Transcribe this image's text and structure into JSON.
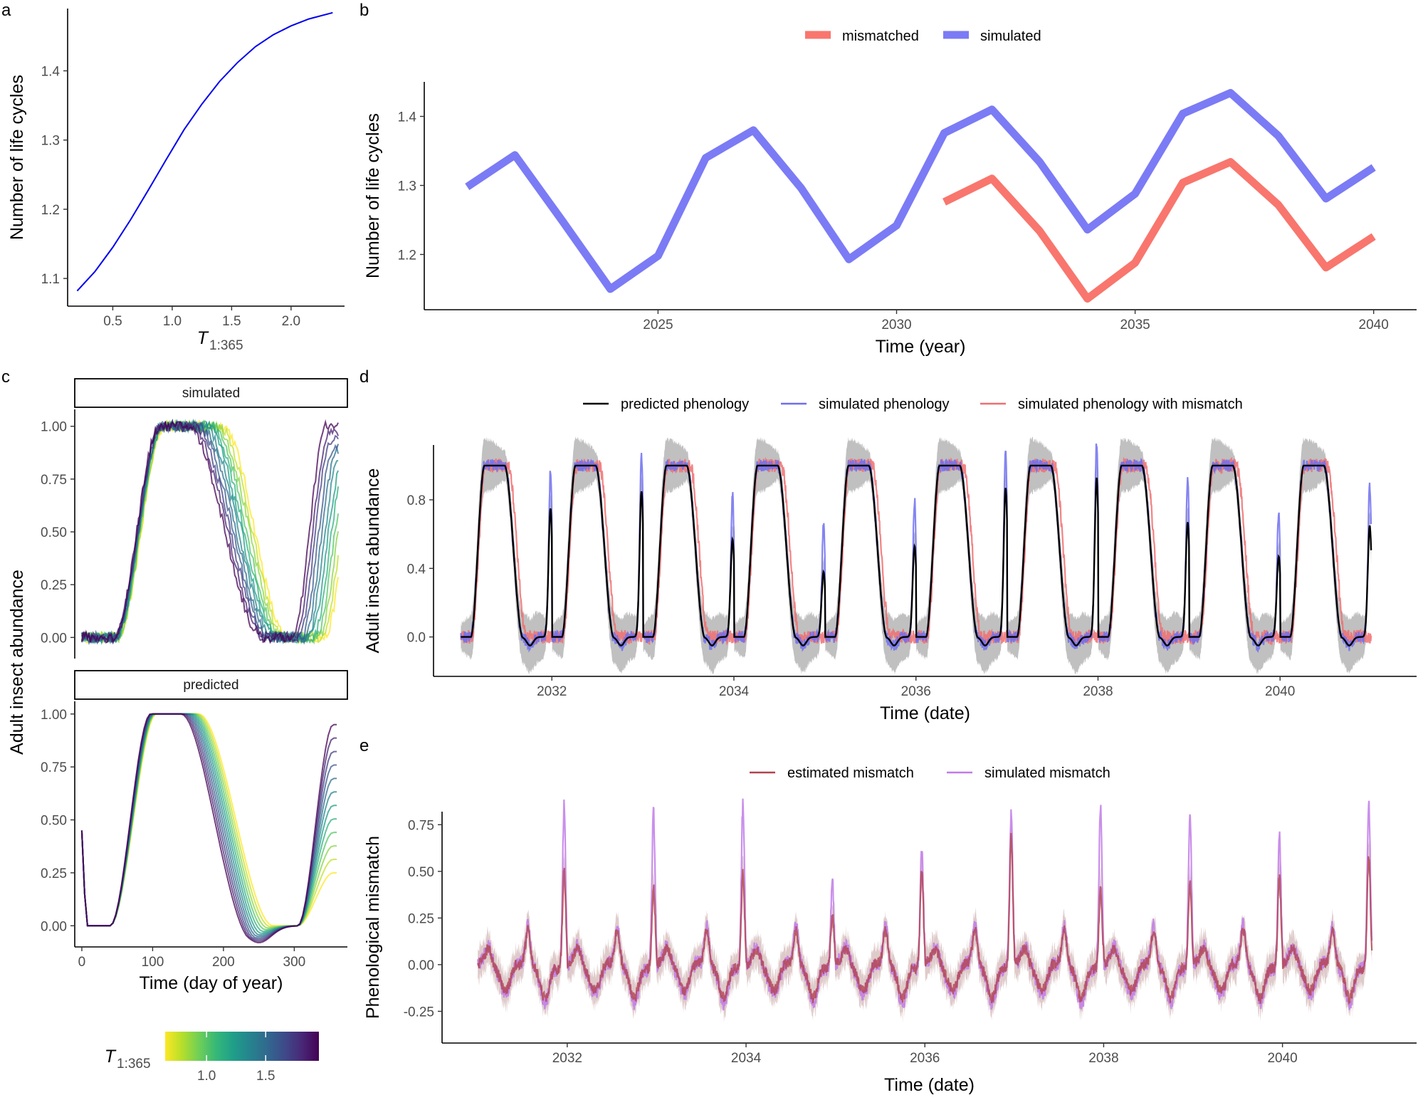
{
  "panel_labels": [
    "a",
    "b",
    "c",
    "d",
    "e"
  ],
  "colors": {
    "mismatched": "#F8766D",
    "simulated_b": "#7B7BF5",
    "predicted_phenology": "#000000",
    "simulated_phenology": "#6E6EF0",
    "simulated_phenology_with_mismatch": "#F06E70",
    "estimated_mismatch": "#B0424F",
    "simulated_mismatch": "#C17BE8",
    "panel_a_line": "#0000EE",
    "viridis": [
      "#FDE725",
      "#B5DE2B",
      "#6ECE58",
      "#35B779",
      "#1F9E89",
      "#26828E",
      "#31688E",
      "#3E4A89",
      "#482878",
      "#440154"
    ]
  },
  "chart_data": [
    {
      "panel": "a",
      "type": "line",
      "xlabel_main": "T",
      "xlabel_sub": "1:365",
      "ylabel": "Number of life cycles",
      "xlim": [
        0.12,
        2.45
      ],
      "ylim": [
        1.06,
        1.49
      ],
      "xticks": [
        "0.5",
        "1.0",
        "1.5",
        "2.0"
      ],
      "yticks": [
        "1.1",
        "1.2",
        "1.3",
        "1.4"
      ],
      "x": [
        0.2,
        0.35,
        0.5,
        0.65,
        0.8,
        0.95,
        1.1,
        1.25,
        1.4,
        1.55,
        1.7,
        1.85,
        2.0,
        2.15,
        2.35
      ],
      "y": [
        1.082,
        1.11,
        1.145,
        1.185,
        1.228,
        1.272,
        1.315,
        1.352,
        1.385,
        1.412,
        1.435,
        1.452,
        1.465,
        1.475,
        1.484
      ]
    },
    {
      "panel": "b",
      "type": "line",
      "xlabel": "Time (year)",
      "ylabel": "Number of life cycles",
      "xlim": [
        2020.1,
        2040.9
      ],
      "ylim": [
        1.12,
        1.45
      ],
      "xticks": [
        "2025",
        "2030",
        "2035",
        "2040"
      ],
      "yticks": [
        "1.2",
        "1.3",
        "1.4"
      ],
      "legend": [
        "mismatched",
        "simulated"
      ],
      "series": [
        {
          "name": "simulated",
          "x": [
            2021,
            2022,
            2023,
            2024,
            2025,
            2026,
            2027,
            2028,
            2029,
            2030,
            2031,
            2032,
            2033,
            2034,
            2035,
            2036,
            2037,
            2038,
            2039,
            2040
          ],
          "values": [
            1.298,
            1.344,
            1.248,
            1.15,
            1.198,
            1.34,
            1.38,
            1.296,
            1.193,
            1.242,
            1.376,
            1.41,
            1.334,
            1.236,
            1.288,
            1.404,
            1.434,
            1.372,
            1.281,
            1.326
          ]
        },
        {
          "name": "mismatched",
          "x": [
            2031,
            2032,
            2033,
            2034,
            2035,
            2036,
            2037,
            2038,
            2039,
            2040
          ],
          "values": [
            1.276,
            1.31,
            1.234,
            1.136,
            1.188,
            1.304,
            1.334,
            1.272,
            1.181,
            1.226
          ]
        }
      ]
    },
    {
      "panel": "c",
      "type": "line",
      "facets": [
        "simulated",
        "predicted"
      ],
      "xlabel": "Time (day of year)",
      "ylabel": "Adult insect abundance",
      "xlim": [
        -10,
        375
      ],
      "xticks": [
        "0",
        "100",
        "200",
        "300"
      ],
      "yticks": [
        "0.00",
        "0.25",
        "0.50",
        "0.75",
        "1.00"
      ],
      "colorbar_title_main": "T",
      "colorbar_title_sub": "1:365",
      "colorbar_ticks": [
        "1.0",
        "1.5"
      ],
      "colorbar_range": [
        0.65,
        1.95
      ]
    },
    {
      "panel": "d",
      "type": "line",
      "xlabel": "Time (date)",
      "ylabel": "Adult insect abundance",
      "xlim": [
        2030.7,
        2041.5
      ],
      "ylim": [
        -0.23,
        1.12
      ],
      "xticks": [
        "2032",
        "2034",
        "2036",
        "2038",
        "2040"
      ],
      "yticks": [
        "0.0",
        "0.4",
        "0.8"
      ],
      "legend": [
        "predicted phenology",
        "simulated phenology",
        "simulated phenology with mismatch"
      ]
    },
    {
      "panel": "e",
      "type": "line",
      "xlabel": "Time (date)",
      "ylabel": "Phenological mismatch",
      "xlim": [
        2030.6,
        2041.5
      ],
      "ylim": [
        -0.42,
        0.82
      ],
      "xticks": [
        "2032",
        "2034",
        "2036",
        "2038",
        "2040"
      ],
      "yticks": [
        "-0.25",
        "0.00",
        "0.25",
        "0.50",
        "0.75"
      ],
      "legend": [
        "estimated mismatch",
        "simulated mismatch"
      ]
    }
  ]
}
